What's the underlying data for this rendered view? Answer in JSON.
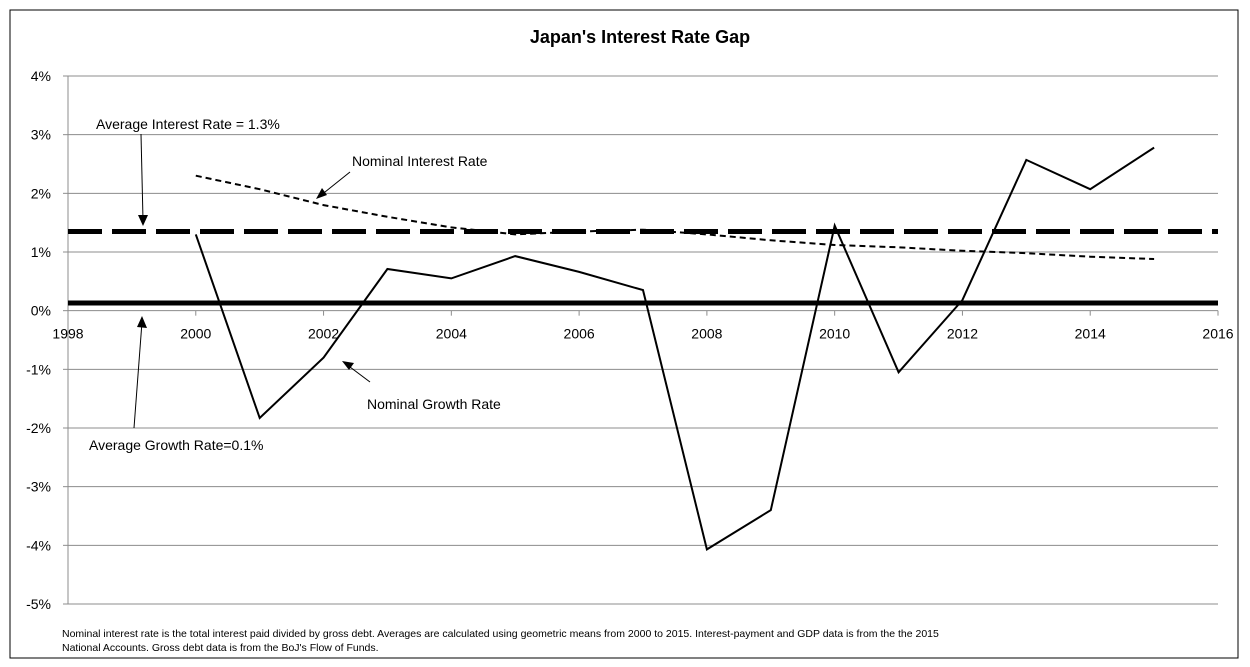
{
  "chart_data": {
    "type": "line",
    "title": "Japan's Interest Rate Gap",
    "xlabel": "",
    "ylabel": "",
    "xlim": [
      1998,
      2016
    ],
    "ylim": [
      -5,
      4
    ],
    "x_ticks": [
      "1998",
      "2000",
      "2002",
      "2004",
      "2006",
      "2008",
      "2010",
      "2012",
      "2014",
      "2016"
    ],
    "y_ticks": [
      "4%",
      "3%",
      "2%",
      "1%",
      "0%",
      "-1%",
      "-2%",
      "-3%",
      "-4%",
      "-5%"
    ],
    "grid": true,
    "legend": "none",
    "series": [
      {
        "name": "Nominal Growth Rate",
        "style": "solid",
        "color": "#000000",
        "x": [
          2000,
          2001,
          2002,
          2003,
          2004,
          2005,
          2006,
          2007,
          2008,
          2009,
          2010,
          2011,
          2012,
          2013,
          2014,
          2015
        ],
        "y": [
          1.3,
          -1.83,
          -0.8,
          0.71,
          0.55,
          0.93,
          0.66,
          0.35,
          -4.07,
          -3.4,
          1.45,
          -1.05,
          0.18,
          2.57,
          2.07,
          2.78
        ]
      },
      {
        "name": "Nominal Interest Rate",
        "style": "dotted",
        "color": "#000000",
        "x": [
          2000,
          2001,
          2002,
          2003,
          2004,
          2005,
          2006,
          2007,
          2008,
          2009,
          2010,
          2011,
          2012,
          2013,
          2014,
          2015
        ],
        "y": [
          2.3,
          2.07,
          1.8,
          1.6,
          1.42,
          1.3,
          1.35,
          1.38,
          1.3,
          1.2,
          1.12,
          1.08,
          1.02,
          0.98,
          0.92,
          0.88
        ]
      }
    ],
    "reference_lines": [
      {
        "name": "Average Interest Rate",
        "value": 1.35,
        "style": "dashed"
      },
      {
        "name": "Average Growth Rate",
        "value": 0.13,
        "style": "solid-thick"
      }
    ],
    "annotations": [
      "Average Interest Rate = 1.3%",
      "Nominal Interest Rate",
      "Nominal Growth Rate",
      "Average Growth Rate=0.1%"
    ],
    "footnote": [
      "Nominal interest rate is the total interest paid divided by gross debt. Averages are calculated using geometric means from 2000 to 2015. Interest-payment and GDP data is from the the 2015",
      "National Accounts. Gross debt data is from the BoJ's Flow of Funds."
    ]
  }
}
